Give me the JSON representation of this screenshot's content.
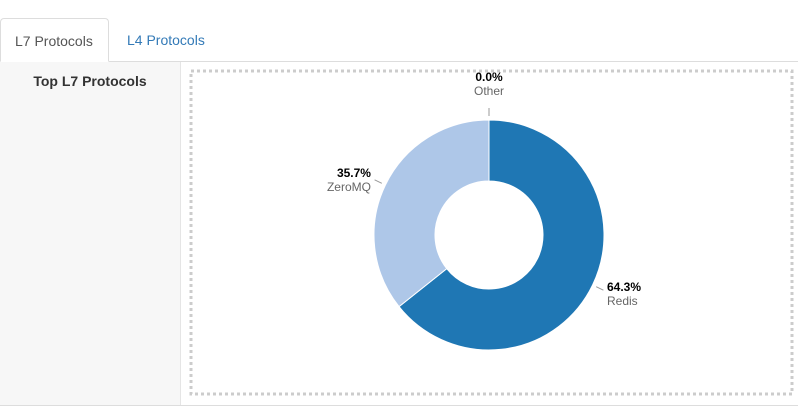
{
  "tabs": [
    "L7 Protocols",
    "L4 Protocols"
  ],
  "panel_title": "Top L7 Protocols",
  "chart_data": {
    "type": "donut",
    "categories": [
      "Redis",
      "ZeroMQ",
      "Other"
    ],
    "values": [
      64.3,
      35.7,
      0.0
    ],
    "value_labels": [
      "64.3%",
      "35.7%",
      "0.0%"
    ],
    "colors": [
      "#1f77b4",
      "#aec7e8",
      "#ff7f0e"
    ]
  }
}
